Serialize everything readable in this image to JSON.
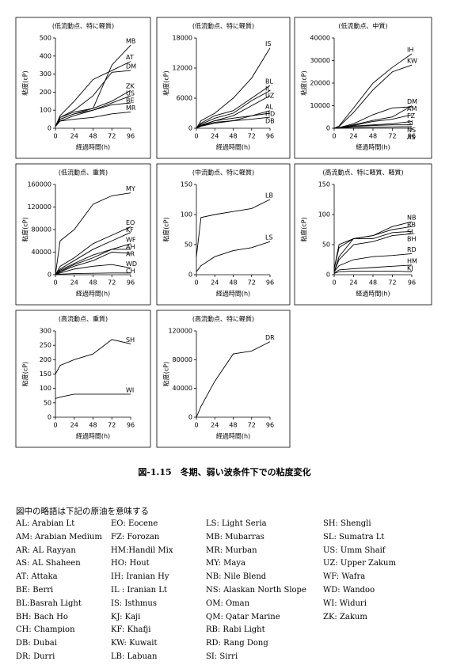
{
  "chart_data": [
    {
      "type": "line",
      "title": "(低流動点、特に軽質)",
      "xlabel": "経過時間(h)",
      "ylabel": "粘度(cP)",
      "color": "#000000",
      "x": [
        0,
        6,
        24,
        48,
        72,
        96
      ],
      "xlim": [
        0,
        96
      ],
      "xticks": [
        0,
        24,
        48,
        72,
        96
      ],
      "ylim": [
        0,
        500
      ],
      "yticks": [
        0,
        100,
        200,
        300,
        400,
        500
      ],
      "series": [
        {
          "name": "MB",
          "values": [
            10,
            60,
            90,
            110,
            350,
            460
          ]
        },
        {
          "name": "AT",
          "values": [
            10,
            70,
            150,
            270,
            320,
            370
          ]
        },
        {
          "name": "DM",
          "values": [
            10,
            60,
            100,
            180,
            310,
            320
          ]
        },
        {
          "name": "ZK",
          "values": [
            10,
            50,
            80,
            110,
            150,
            210
          ]
        },
        {
          "name": "US",
          "values": [
            10,
            40,
            70,
            100,
            140,
            180
          ]
        },
        {
          "name": "BE",
          "values": [
            10,
            50,
            80,
            100,
            130,
            140
          ]
        },
        {
          "name": "MR",
          "values": [
            10,
            40,
            50,
            60,
            80,
            90
          ]
        }
      ]
    },
    {
      "type": "line",
      "title": "(低流動点、特に軽質)",
      "xlabel": "経過時間(h)",
      "ylabel": "粘度(cP)",
      "color": "#000000",
      "x": [
        0,
        6,
        24,
        48,
        72,
        96
      ],
      "xlim": [
        0,
        96
      ],
      "xticks": [
        0,
        24,
        48,
        72,
        96
      ],
      "ylim": [
        0,
        18000
      ],
      "yticks": [
        0,
        6000,
        12000,
        18000
      ],
      "series": [
        {
          "name": "IS",
          "values": [
            0,
            1500,
            3000,
            6000,
            10000,
            16000
          ]
        },
        {
          "name": "BL",
          "values": [
            0,
            1000,
            2500,
            3500,
            6000,
            8500
          ]
        },
        {
          "name": "IL",
          "values": [
            0,
            800,
            2000,
            3000,
            5500,
            7500
          ]
        },
        {
          "name": "UZ",
          "values": [
            0,
            600,
            1500,
            2500,
            4500,
            6500
          ]
        },
        {
          "name": "AL",
          "values": [
            0,
            500,
            1500,
            2000,
            2500,
            3500
          ]
        },
        {
          "name": "HD",
          "values": [
            0,
            500,
            1200,
            1500,
            2500,
            3000
          ]
        },
        {
          "name": "DB",
          "values": [
            0,
            400,
            1000,
            1500,
            1800,
            2200
          ]
        }
      ]
    },
    {
      "type": "line",
      "title": "(低流動点、中質)",
      "xlabel": "経過時間(h)",
      "ylabel": "粘度(cP)",
      "color": "#000000",
      "x": [
        0,
        6,
        24,
        48,
        72,
        96
      ],
      "xlim": [
        0,
        96
      ],
      "xticks": [
        0,
        24,
        48,
        72,
        96
      ],
      "ylim": [
        0,
        40000
      ],
      "yticks": [
        0,
        10000,
        20000,
        30000,
        40000
      ],
      "series": [
        {
          "name": "IH",
          "values": [
            0,
            1000,
            9000,
            20000,
            27000,
            33000
          ]
        },
        {
          "name": "KW",
          "values": [
            0,
            800,
            7000,
            17000,
            25000,
            28000
          ]
        },
        {
          "name": "AM",
          "values": [
            0,
            300,
            2000,
            6000,
            9000,
            9500
          ]
        },
        {
          "name": "DM",
          "values": [
            0,
            200,
            1500,
            3500,
            5000,
            10000
          ]
        },
        {
          "name": "FZ",
          "values": [
            0,
            200,
            1200,
            3000,
            4000,
            6000
          ]
        },
        {
          "name": "SI",
          "values": [
            0,
            150,
            1000,
            1500,
            2000,
            3000
          ]
        },
        {
          "name": "NS",
          "values": [
            0,
            100,
            800,
            1200,
            1500,
            1500
          ]
        },
        {
          "name": "AS",
          "values": [
            0,
            50,
            300,
            500,
            600,
            700
          ]
        }
      ]
    },
    {
      "type": "line",
      "title": "(低流動点、重質)",
      "xlabel": "経過時間(h)",
      "ylabel": "粘度(cP)",
      "color": "#000000",
      "x": [
        0,
        6,
        24,
        48,
        72,
        96
      ],
      "xlim": [
        0,
        96
      ],
      "xticks": [
        0,
        24,
        48,
        72,
        96
      ],
      "ylim": [
        0,
        160000
      ],
      "yticks": [
        0,
        40000,
        80000,
        120000,
        160000
      ],
      "series": [
        {
          "name": "MY",
          "values": [
            0,
            60000,
            80000,
            125000,
            140000,
            145000
          ]
        },
        {
          "name": "EO",
          "values": [
            0,
            15000,
            30000,
            55000,
            70000,
            85000
          ]
        },
        {
          "name": "KF",
          "values": [
            0,
            10000,
            25000,
            45000,
            60000,
            75000
          ]
        },
        {
          "name": "WF",
          "values": [
            0,
            8000,
            20000,
            35000,
            45000,
            55000
          ]
        },
        {
          "name": "AH",
          "values": [
            0,
            6000,
            18000,
            30000,
            45000,
            45000
          ]
        },
        {
          "name": "AR",
          "values": [
            0,
            5000,
            15000,
            25000,
            40000,
            38000
          ]
        },
        {
          "name": "WD",
          "values": [
            0,
            3000,
            10000,
            15000,
            18000,
            12000
          ]
        },
        {
          "name": "CH",
          "values": [
            0,
            1000,
            2000,
            2500,
            3000,
            3000
          ]
        }
      ]
    },
    {
      "type": "line",
      "title": "(中流動点、特に軽質)",
      "xlabel": "経過時間(h)",
      "ylabel": "粘度(cP)",
      "color": "#000000",
      "x": [
        0,
        6,
        24,
        48,
        72,
        96
      ],
      "xlim": [
        0,
        96
      ],
      "xticks": [
        0,
        24,
        48,
        72,
        96
      ],
      "ylim": [
        0,
        150
      ],
      "yticks": [
        0,
        50,
        100,
        150
      ],
      "series": [
        {
          "name": "LB",
          "values": [
            30,
            95,
            100,
            105,
            110,
            125
          ]
        },
        {
          "name": "LS",
          "values": [
            5,
            15,
            30,
            40,
            45,
            55
          ]
        }
      ]
    },
    {
      "type": "line",
      "title": "(高流動点、特に軽質、軽質)",
      "xlabel": "経過時間(h)",
      "ylabel": "粘度(cP)",
      "color": "#000000",
      "x": [
        0,
        6,
        24,
        48,
        72,
        96
      ],
      "xlim": [
        0,
        96
      ],
      "xticks": [
        0,
        24,
        48,
        72,
        96
      ],
      "ylim": [
        0,
        150
      ],
      "yticks": [
        0,
        50,
        100,
        150
      ],
      "series": [
        {
          "name": "NB",
          "values": [
            10,
            45,
            60,
            65,
            80,
            88
          ]
        },
        {
          "name": "RB",
          "values": [
            10,
            50,
            60,
            65,
            75,
            80
          ]
        },
        {
          "name": "SL",
          "values": [
            5,
            30,
            60,
            60,
            70,
            72
          ]
        },
        {
          "name": "BH",
          "values": [
            5,
            25,
            50,
            55,
            65,
            68
          ]
        },
        {
          "name": "RD",
          "values": [
            5,
            15,
            25,
            30,
            32,
            35
          ]
        },
        {
          "name": "HM",
          "values": [
            3,
            8,
            10,
            12,
            14,
            16
          ]
        },
        {
          "name": "KJ",
          "values": [
            2,
            5,
            6,
            6,
            6,
            5
          ]
        }
      ]
    },
    {
      "type": "line",
      "title": "(高流動点、重質)",
      "xlabel": "経過時間(h)",
      "ylabel": "粘度(cP)",
      "color": "#000000",
      "x": [
        0,
        6,
        24,
        48,
        72,
        96
      ],
      "xlim": [
        0,
        96
      ],
      "xticks": [
        0,
        24,
        48,
        72,
        96
      ],
      "ylim": [
        0,
        300
      ],
      "yticks": [
        0,
        50,
        100,
        150,
        200,
        250,
        300
      ],
      "series": [
        {
          "name": "SH",
          "values": [
            150,
            180,
            200,
            220,
            270,
            255
          ]
        },
        {
          "name": "WI",
          "values": [
            65,
            70,
            80,
            80,
            80,
            80
          ]
        }
      ]
    },
    {
      "type": "line",
      "title": "(高流動点、特に軽質)",
      "xlabel": "経過時間(h)",
      "ylabel": "粘度(cP)",
      "color": "#000000",
      "x": [
        0,
        6,
        24,
        48,
        72,
        96
      ],
      "xlim": [
        0,
        96
      ],
      "xticks": [
        0,
        24,
        48,
        72,
        96
      ],
      "ylim": [
        0,
        120000
      ],
      "yticks": [
        0,
        40000,
        80000,
        120000
      ],
      "series": [
        {
          "name": "DR",
          "values": [
            0,
            15000,
            50000,
            88000,
            92000,
            105000
          ]
        }
      ]
    }
  ],
  "caption": "図-1.15　冬期、弱い波条件下での粘度変化",
  "abbreviations": {
    "title": "図中の略語は下記の原油を意味する",
    "columns": [
      [
        "AL: Arabian Lt",
        "AM:  Arabian Medium",
        "AR:  AL Rayyan",
        "AS:  AL Shaheen",
        "AT:  Attaka",
        "BE:  Berri",
        "BL:Basrah Light",
        "BH:  Bach Ho",
        "CH:  Champion",
        "DB: Dubai",
        "DR:  Durri"
      ],
      [
        "EO:  Eocene",
        "FZ:  Forozan",
        "HM:Handil Mix",
        "HO:  Hout",
        "IH:  Iranian Hy",
        "IL : Iranian Lt",
        "IS:  Isthmus",
        "KJ: Kaji",
        "KF:  Khafji",
        "KW:  Kuwait",
        "LB:  Labuan"
      ],
      [
        "LS:  Light Seria",
        "MB:  Mubarras",
        "MR:  Murban",
        "MY:  Maya",
        "NB:  Nile Blend",
        "NS:  Alaskan North Slope",
        "OM:  Oman",
        "QM:  Qatar Marine",
        "RB:  Rabi Light",
        "RD:  Rang Dong",
        "SI:  Sirri"
      ],
      [
        "SH:  Shengli",
        "SL:  Sumatra Lt",
        "US:  Umm Shaif",
        "UZ:  Upper Zakum",
        "WF:  Wafra",
        "WD:  Wandoo",
        "WI:  Widuri",
        "ZK:  Zakum"
      ]
    ]
  }
}
